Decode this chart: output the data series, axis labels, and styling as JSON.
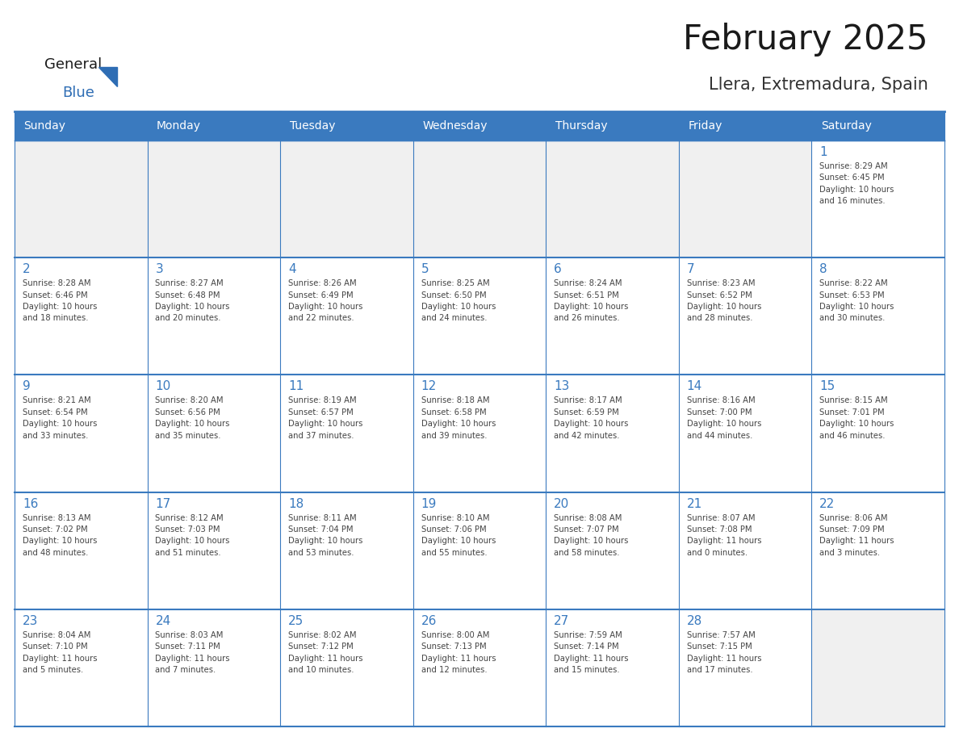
{
  "title": "February 2025",
  "subtitle": "Llera, Extremadura, Spain",
  "header_color": "#3a7abf",
  "header_text_color": "#ffffff",
  "cell_bg_white": "#ffffff",
  "cell_bg_gray": "#f0f0f0",
  "border_color": "#3a7abf",
  "day_names": [
    "Sunday",
    "Monday",
    "Tuesday",
    "Wednesday",
    "Thursday",
    "Friday",
    "Saturday"
  ],
  "title_color": "#1a1a1a",
  "subtitle_color": "#333333",
  "day_num_color": "#3a7abf",
  "text_color": "#444444",
  "logo_general_color": "#1a1a1a",
  "logo_blue_color": "#2e6db4",
  "weeks": [
    [
      {
        "day": null,
        "info": null
      },
      {
        "day": null,
        "info": null
      },
      {
        "day": null,
        "info": null
      },
      {
        "day": null,
        "info": null
      },
      {
        "day": null,
        "info": null
      },
      {
        "day": null,
        "info": null
      },
      {
        "day": 1,
        "info": "Sunrise: 8:29 AM\nSunset: 6:45 PM\nDaylight: 10 hours\nand 16 minutes."
      }
    ],
    [
      {
        "day": 2,
        "info": "Sunrise: 8:28 AM\nSunset: 6:46 PM\nDaylight: 10 hours\nand 18 minutes."
      },
      {
        "day": 3,
        "info": "Sunrise: 8:27 AM\nSunset: 6:48 PM\nDaylight: 10 hours\nand 20 minutes."
      },
      {
        "day": 4,
        "info": "Sunrise: 8:26 AM\nSunset: 6:49 PM\nDaylight: 10 hours\nand 22 minutes."
      },
      {
        "day": 5,
        "info": "Sunrise: 8:25 AM\nSunset: 6:50 PM\nDaylight: 10 hours\nand 24 minutes."
      },
      {
        "day": 6,
        "info": "Sunrise: 8:24 AM\nSunset: 6:51 PM\nDaylight: 10 hours\nand 26 minutes."
      },
      {
        "day": 7,
        "info": "Sunrise: 8:23 AM\nSunset: 6:52 PM\nDaylight: 10 hours\nand 28 minutes."
      },
      {
        "day": 8,
        "info": "Sunrise: 8:22 AM\nSunset: 6:53 PM\nDaylight: 10 hours\nand 30 minutes."
      }
    ],
    [
      {
        "day": 9,
        "info": "Sunrise: 8:21 AM\nSunset: 6:54 PM\nDaylight: 10 hours\nand 33 minutes."
      },
      {
        "day": 10,
        "info": "Sunrise: 8:20 AM\nSunset: 6:56 PM\nDaylight: 10 hours\nand 35 minutes."
      },
      {
        "day": 11,
        "info": "Sunrise: 8:19 AM\nSunset: 6:57 PM\nDaylight: 10 hours\nand 37 minutes."
      },
      {
        "day": 12,
        "info": "Sunrise: 8:18 AM\nSunset: 6:58 PM\nDaylight: 10 hours\nand 39 minutes."
      },
      {
        "day": 13,
        "info": "Sunrise: 8:17 AM\nSunset: 6:59 PM\nDaylight: 10 hours\nand 42 minutes."
      },
      {
        "day": 14,
        "info": "Sunrise: 8:16 AM\nSunset: 7:00 PM\nDaylight: 10 hours\nand 44 minutes."
      },
      {
        "day": 15,
        "info": "Sunrise: 8:15 AM\nSunset: 7:01 PM\nDaylight: 10 hours\nand 46 minutes."
      }
    ],
    [
      {
        "day": 16,
        "info": "Sunrise: 8:13 AM\nSunset: 7:02 PM\nDaylight: 10 hours\nand 48 minutes."
      },
      {
        "day": 17,
        "info": "Sunrise: 8:12 AM\nSunset: 7:03 PM\nDaylight: 10 hours\nand 51 minutes."
      },
      {
        "day": 18,
        "info": "Sunrise: 8:11 AM\nSunset: 7:04 PM\nDaylight: 10 hours\nand 53 minutes."
      },
      {
        "day": 19,
        "info": "Sunrise: 8:10 AM\nSunset: 7:06 PM\nDaylight: 10 hours\nand 55 minutes."
      },
      {
        "day": 20,
        "info": "Sunrise: 8:08 AM\nSunset: 7:07 PM\nDaylight: 10 hours\nand 58 minutes."
      },
      {
        "day": 21,
        "info": "Sunrise: 8:07 AM\nSunset: 7:08 PM\nDaylight: 11 hours\nand 0 minutes."
      },
      {
        "day": 22,
        "info": "Sunrise: 8:06 AM\nSunset: 7:09 PM\nDaylight: 11 hours\nand 3 minutes."
      }
    ],
    [
      {
        "day": 23,
        "info": "Sunrise: 8:04 AM\nSunset: 7:10 PM\nDaylight: 11 hours\nand 5 minutes."
      },
      {
        "day": 24,
        "info": "Sunrise: 8:03 AM\nSunset: 7:11 PM\nDaylight: 11 hours\nand 7 minutes."
      },
      {
        "day": 25,
        "info": "Sunrise: 8:02 AM\nSunset: 7:12 PM\nDaylight: 11 hours\nand 10 minutes."
      },
      {
        "day": 26,
        "info": "Sunrise: 8:00 AM\nSunset: 7:13 PM\nDaylight: 11 hours\nand 12 minutes."
      },
      {
        "day": 27,
        "info": "Sunrise: 7:59 AM\nSunset: 7:14 PM\nDaylight: 11 hours\nand 15 minutes."
      },
      {
        "day": 28,
        "info": "Sunrise: 7:57 AM\nSunset: 7:15 PM\nDaylight: 11 hours\nand 17 minutes."
      },
      {
        "day": null,
        "info": null
      }
    ]
  ]
}
